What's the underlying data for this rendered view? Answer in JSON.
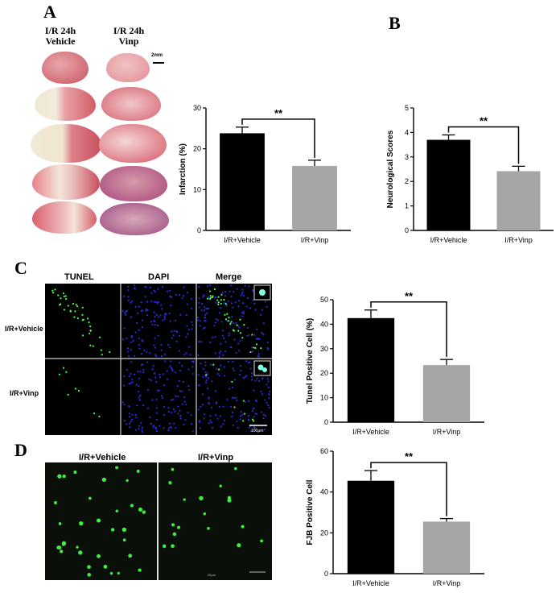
{
  "panels": {
    "a": "A",
    "b": "B",
    "c": "C",
    "d": "D"
  },
  "panel_a": {
    "col1": "I/R 24h\nVehicle",
    "col2": "I/R 24h\nVinp",
    "scale": "2mm"
  },
  "panel_c": {
    "headers": [
      "TUNEL",
      "DAPI",
      "Merge"
    ],
    "rows": [
      "I/R+Vehicle",
      "I/R+Vinp"
    ],
    "scale": "100µm"
  },
  "panel_d": {
    "headers": [
      "I/R+Vehicle",
      "I/R+Vinp"
    ],
    "scale": "25µm"
  },
  "chart_data": [
    {
      "type": "bar",
      "panel": "A",
      "categories": [
        "I/R+Vehicle",
        "I/R+Vinp"
      ],
      "values": [
        23.8,
        15.8
      ],
      "errors": [
        1.5,
        1.4
      ],
      "ylabel": "Infarction (%)",
      "xlabel": "",
      "ylim": [
        0,
        30
      ],
      "yticks": [
        0,
        10,
        20,
        30
      ],
      "significance": "**",
      "colors": [
        "#000000",
        "#a6a6a6"
      ]
    },
    {
      "type": "bar",
      "panel": "B",
      "categories": [
        "I/R+Vehicle",
        "I/R+Vinp"
      ],
      "values": [
        3.7,
        2.42
      ],
      "errors": [
        0.2,
        0.2
      ],
      "ylabel": "Neurological Scores",
      "xlabel": "",
      "ylim": [
        0,
        5
      ],
      "yticks": [
        0,
        1,
        2,
        3,
        4,
        5
      ],
      "significance": "**",
      "colors": [
        "#000000",
        "#a6a6a6"
      ]
    },
    {
      "type": "bar",
      "panel": "C",
      "categories": [
        "I/R+Vehicle",
        "I/R+Vinp"
      ],
      "values": [
        42.5,
        23.3
      ],
      "errors": [
        3.3,
        2.3
      ],
      "ylabel": "Tunel Positive Cell (%)",
      "xlabel": "",
      "ylim": [
        0,
        50
      ],
      "yticks": [
        0,
        10,
        20,
        30,
        40,
        50
      ],
      "significance": "**",
      "colors": [
        "#000000",
        "#a6a6a6"
      ]
    },
    {
      "type": "bar",
      "panel": "D",
      "categories": [
        "I/R+Vehicle",
        "I/R+Vinp"
      ],
      "values": [
        45.5,
        25.5
      ],
      "errors": [
        5.0,
        1.5
      ],
      "ylabel": "FJB Positive Cell",
      "xlabel": "",
      "ylim": [
        0,
        60
      ],
      "yticks": [
        0,
        20,
        40,
        60
      ],
      "significance": "**",
      "colors": [
        "#000000",
        "#a6a6a6"
      ]
    }
  ]
}
